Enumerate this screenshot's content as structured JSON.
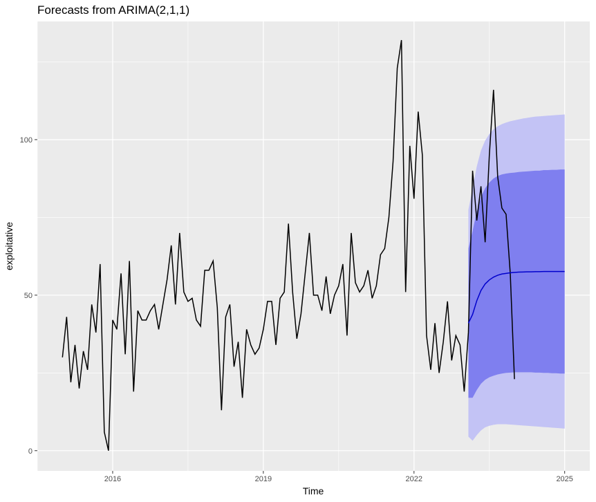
{
  "chart_data": {
    "type": "line",
    "title": "Forecasts from ARIMA(2,1,1)",
    "xlabel": "Time",
    "ylabel": "exploitative",
    "xlim": [
      2014.5,
      2025.5
    ],
    "ylim": [
      -6.5,
      138
    ],
    "x_ticks": [
      2016,
      2019,
      2022,
      2025
    ],
    "x_tick_labels": [
      "2016",
      "2019",
      "2022",
      "2025"
    ],
    "y_ticks": [
      0,
      50,
      100
    ],
    "y_tick_labels": [
      "0",
      "50",
      "100"
    ],
    "grid": true,
    "legend": "none",
    "observed": {
      "start": 2015.0,
      "step": 0.08333333333333333,
      "values": [
        30,
        43,
        22,
        34,
        20,
        32,
        26,
        47,
        38,
        60,
        6,
        0,
        42,
        39,
        57,
        31,
        61,
        19,
        45,
        42,
        42,
        45,
        47,
        39,
        47,
        55,
        66,
        47,
        70,
        51,
        48,
        49,
        42,
        40,
        58,
        58,
        61,
        46,
        13,
        43,
        47,
        27,
        35,
        17,
        39,
        34,
        31,
        33,
        39,
        48,
        48,
        34,
        49,
        51,
        73,
        51,
        36,
        44,
        57,
        70,
        50,
        50,
        45,
        56,
        44,
        50,
        53,
        60,
        37,
        70,
        54,
        51,
        53,
        58,
        49,
        53,
        63,
        65,
        75,
        93,
        123,
        132,
        51,
        98,
        81,
        109,
        95,
        37,
        26,
        41,
        25,
        35,
        48,
        29,
        37,
        34,
        19,
        38,
        90,
        74,
        85,
        67,
        95,
        116,
        88,
        78,
        76,
        57,
        23
      ]
    },
    "forecast": {
      "start": 2023.0833333333333,
      "step": 0.08333333333333333,
      "mean": [
        41,
        43.8,
        48.2,
        51.5,
        53.6,
        54.9,
        55.8,
        56.4,
        56.8,
        57.0,
        57.2,
        57.3,
        57.4,
        57.45,
        57.5,
        57.5,
        57.55,
        57.55,
        57.6,
        57.6,
        57.6,
        57.6,
        57.6,
        57.6
      ],
      "lo80": [
        17,
        17,
        19.5,
        21.5,
        22.8,
        23.6,
        24.1,
        24.5,
        24.8,
        25.0,
        25.1,
        25.2,
        25.2,
        25.2,
        25.2,
        25.2,
        25.1,
        25.1,
        25.0,
        25.0,
        24.9,
        24.9,
        24.8,
        24.8
      ],
      "hi80": [
        65,
        70.6,
        76.9,
        81.5,
        84.4,
        86.2,
        87.5,
        88.3,
        88.8,
        89.1,
        89.3,
        89.4,
        89.6,
        89.7,
        89.8,
        89.9,
        90.0,
        90.0,
        90.2,
        90.2,
        90.3,
        90.3,
        90.4,
        90.4
      ],
      "lo95": [
        4.5,
        3.2,
        5,
        6.5,
        7.5,
        8.0,
        8.3,
        8.5,
        8.5,
        8.5,
        8.4,
        8.3,
        8.2,
        8.1,
        8.0,
        7.9,
        7.8,
        7.7,
        7.6,
        7.5,
        7.4,
        7.3,
        7.2,
        7.1
      ],
      "hi95": [
        77.5,
        84.4,
        91.4,
        96.5,
        99.7,
        101.8,
        103.3,
        104.3,
        105.0,
        105.5,
        105.9,
        106.2,
        106.5,
        106.8,
        107.0,
        107.2,
        107.4,
        107.5,
        107.6,
        107.7,
        107.8,
        107.9,
        108.0,
        108.1
      ]
    },
    "colors": {
      "panel": "#ebebeb",
      "grid_major": "#ffffff",
      "observed_line": "#000000",
      "forecast_line": "#0000cc",
      "band_80": "#7f7fef",
      "band_95": "#c3c3f5"
    }
  }
}
